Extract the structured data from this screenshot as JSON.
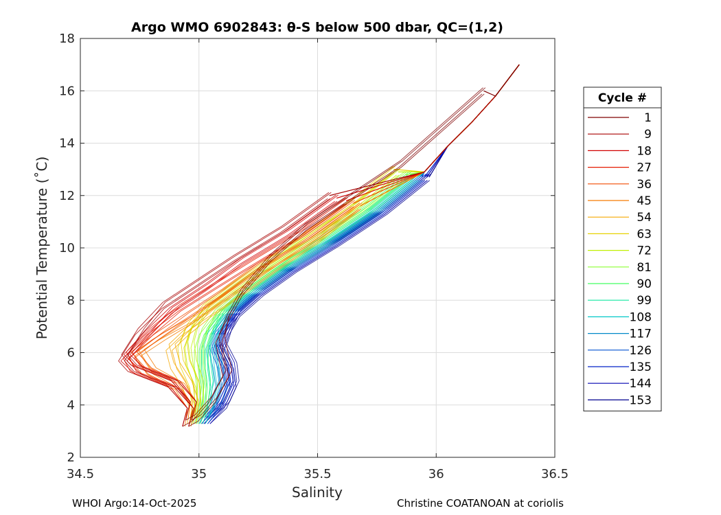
{
  "title": "Argo WMO 6902843: θ-S below 500 dbar,  QC=(1,2)",
  "xlabel": "Salinity",
  "ylabel": "Potential Temperature (˚C)",
  "footer_left": "WHOI Argo:14-Oct-2025",
  "footer_right": "Christine COATANOAN at coriolis",
  "chart_data": {
    "type": "line",
    "title": "Argo WMO 6902843: θ-S below 500 dbar,  QC=(1,2)",
    "xlabel": "Salinity",
    "ylabel": "Potential Temperature (˚C)",
    "xlim": [
      34.5,
      36.5
    ],
    "ylim": [
      2,
      18
    ],
    "xticks": [
      34.5,
      35,
      35.5,
      36,
      36.5
    ],
    "xtick_labels": [
      "34.5",
      "35",
      "35.5",
      "36",
      "36.5"
    ],
    "yticks": [
      2,
      4,
      6,
      8,
      10,
      12,
      14,
      16,
      18
    ],
    "ytick_labels": [
      "2",
      "4",
      "6",
      "8",
      "10",
      "12",
      "14",
      "16",
      "18"
    ],
    "grid": true,
    "legend": {
      "title": "Cycle #",
      "placement": "outside-right",
      "entries": [
        "1",
        "9",
        "18",
        "27",
        "36",
        "45",
        "54",
        "63",
        "72",
        "81",
        "90",
        "99",
        "108",
        "117",
        "126",
        "135",
        "144",
        "153"
      ]
    },
    "colors": [
      "#7f0000",
      "#a80000",
      "#d10000",
      "#e61a00",
      "#f04a00",
      "#f57a00",
      "#f5a800",
      "#e6d200",
      "#c0f000",
      "#8cff30",
      "#40ff60",
      "#10e8a0",
      "#00c8c8",
      "#0088c8",
      "#0050d0",
      "#0020c8",
      "#0000b0",
      "#00008f"
    ],
    "series": [
      {
        "name": "1",
        "x": [
          34.95,
          34.99,
          35.06,
          35.12,
          35.1,
          35.09,
          35.12,
          35.18,
          35.3,
          35.45,
          35.65,
          35.85,
          36.0,
          36.2
        ],
        "y": [
          3.3,
          3.5,
          4.2,
          5.2,
          6.0,
          6.5,
          7.3,
          8.3,
          9.6,
          10.8,
          12.0,
          13.2,
          14.4,
          16.0
        ]
      },
      {
        "name": "9",
        "x": [
          34.95,
          34.97,
          34.89,
          34.72,
          34.68,
          34.75,
          34.85,
          35.0,
          35.15,
          35.35,
          35.55
        ],
        "y": [
          3.3,
          4.0,
          4.8,
          5.4,
          5.8,
          6.8,
          7.8,
          8.7,
          9.6,
          10.7,
          12.0
        ]
      },
      {
        "name": "18",
        "x": [
          34.95,
          34.97,
          34.9,
          34.75,
          34.69,
          34.78,
          34.88,
          35.03,
          35.18,
          35.38,
          35.58
        ],
        "y": [
          3.3,
          4.0,
          4.8,
          5.3,
          5.8,
          6.7,
          7.6,
          8.5,
          9.5,
          10.6,
          11.9
        ]
      },
      {
        "name": "27",
        "x": [
          34.95,
          34.97,
          34.88,
          34.73,
          34.7,
          34.8,
          34.92,
          35.06,
          35.22,
          35.42,
          35.62
        ],
        "y": [
          3.3,
          4.0,
          4.9,
          5.4,
          5.9,
          6.8,
          7.7,
          8.5,
          9.4,
          10.5,
          11.8
        ]
      },
      {
        "name": "36",
        "x": [
          34.95,
          34.97,
          34.91,
          34.78,
          34.72,
          34.82,
          34.95,
          35.1,
          35.25,
          35.45,
          35.65
        ],
        "y": [
          3.3,
          4.0,
          4.7,
          5.3,
          5.9,
          6.6,
          7.4,
          8.3,
          9.3,
          10.4,
          11.7
        ]
      },
      {
        "name": "45",
        "x": [
          34.96,
          34.97,
          34.92,
          34.8,
          34.75,
          34.85,
          34.98,
          35.12,
          35.28,
          35.48,
          35.68
        ],
        "y": [
          3.3,
          4.0,
          4.7,
          5.3,
          6.0,
          6.6,
          7.3,
          8.2,
          9.2,
          10.3,
          11.6
        ]
      },
      {
        "name": "54",
        "x": [
          34.97,
          34.98,
          34.95,
          34.9,
          34.88,
          34.95,
          35.05,
          35.18,
          35.32,
          35.5,
          35.68
        ],
        "y": [
          3.4,
          4.0,
          4.8,
          5.5,
          6.2,
          6.8,
          7.5,
          8.3,
          9.2,
          10.3,
          11.6
        ]
      },
      {
        "name": "63",
        "x": [
          34.98,
          34.99,
          34.98,
          34.94,
          34.93,
          34.96,
          35.02,
          35.12,
          35.26,
          35.44,
          35.64,
          35.82
        ],
        "y": [
          3.4,
          4.0,
          4.8,
          5.6,
          6.3,
          7.0,
          7.7,
          8.4,
          9.3,
          10.4,
          11.7,
          13.0
        ]
      },
      {
        "name": "72",
        "x": [
          34.98,
          35.0,
          35.0,
          34.97,
          34.96,
          34.98,
          35.04,
          35.14,
          35.28,
          35.46,
          35.66,
          35.84
        ],
        "y": [
          3.4,
          4.0,
          4.8,
          5.6,
          6.3,
          7.0,
          7.7,
          8.4,
          9.3,
          10.4,
          11.6,
          12.9
        ]
      },
      {
        "name": "81",
        "x": [
          34.99,
          35.01,
          35.01,
          35.0,
          35.0,
          35.02,
          35.07,
          35.17,
          35.31,
          35.49,
          35.69,
          35.87
        ],
        "y": [
          3.4,
          4.0,
          4.8,
          5.5,
          6.2,
          6.8,
          7.5,
          8.3,
          9.2,
          10.3,
          11.5,
          12.8
        ]
      },
      {
        "name": "90",
        "x": [
          35.0,
          35.02,
          35.03,
          35.02,
          35.02,
          35.04,
          35.09,
          35.19,
          35.33,
          35.51,
          35.71,
          35.89
        ],
        "y": [
          3.4,
          4.0,
          4.8,
          5.5,
          6.2,
          6.8,
          7.5,
          8.3,
          9.2,
          10.3,
          11.5,
          12.8
        ]
      },
      {
        "name": "99",
        "x": [
          35.01,
          35.03,
          35.04,
          35.03,
          35.03,
          35.05,
          35.1,
          35.2,
          35.34,
          35.52,
          35.72,
          35.9
        ],
        "y": [
          3.4,
          4.0,
          4.8,
          5.5,
          6.2,
          6.8,
          7.5,
          8.3,
          9.2,
          10.2,
          11.4,
          12.7
        ]
      },
      {
        "name": "108",
        "x": [
          35.02,
          35.05,
          35.07,
          35.06,
          35.05,
          35.07,
          35.12,
          35.22,
          35.36,
          35.54,
          35.74,
          35.92
        ],
        "y": [
          3.4,
          4.0,
          4.8,
          5.5,
          6.2,
          6.8,
          7.5,
          8.3,
          9.2,
          10.2,
          11.4,
          12.7
        ]
      },
      {
        "name": "117",
        "x": [
          35.02,
          35.06,
          35.09,
          35.08,
          35.06,
          35.08,
          35.13,
          35.23,
          35.37,
          35.55,
          35.75,
          35.93
        ],
        "y": [
          3.4,
          4.0,
          4.8,
          5.5,
          6.2,
          6.8,
          7.5,
          8.3,
          9.2,
          10.2,
          11.4,
          12.7
        ]
      },
      {
        "name": "126",
        "x": [
          35.03,
          35.08,
          35.11,
          35.1,
          35.07,
          35.09,
          35.14,
          35.24,
          35.38,
          35.56,
          35.76,
          35.94
        ],
        "y": [
          3.4,
          4.0,
          4.8,
          5.5,
          6.2,
          6.8,
          7.5,
          8.3,
          9.2,
          10.2,
          11.4,
          12.7
        ]
      },
      {
        "name": "135",
        "x": [
          35.03,
          35.09,
          35.13,
          35.12,
          35.08,
          35.1,
          35.15,
          35.25,
          35.39,
          35.57,
          35.77,
          35.95
        ],
        "y": [
          3.4,
          4.0,
          4.8,
          5.5,
          6.2,
          6.8,
          7.5,
          8.3,
          9.2,
          10.2,
          11.4,
          12.7
        ]
      },
      {
        "name": "144",
        "x": [
          35.04,
          35.1,
          35.14,
          35.13,
          35.09,
          35.11,
          35.16,
          35.26,
          35.4,
          35.58,
          35.78,
          35.96
        ],
        "y": [
          3.4,
          4.0,
          4.8,
          5.5,
          6.2,
          6.8,
          7.5,
          8.3,
          9.2,
          10.2,
          11.4,
          12.7
        ]
      },
      {
        "name": "153",
        "x": [
          35.04,
          35.11,
          35.15,
          35.14,
          35.1,
          35.12,
          35.17,
          35.27,
          35.41,
          35.59,
          35.79,
          35.97
        ],
        "y": [
          3.4,
          4.0,
          4.8,
          5.5,
          6.2,
          6.8,
          7.5,
          8.3,
          9.2,
          10.2,
          11.4,
          12.7
        ]
      }
    ],
    "common_upper": {
      "x": [
        35.95,
        36.05,
        36.15,
        36.25,
        36.35
      ],
      "y": [
        12.9,
        13.9,
        14.8,
        15.8,
        17.0
      ]
    }
  }
}
